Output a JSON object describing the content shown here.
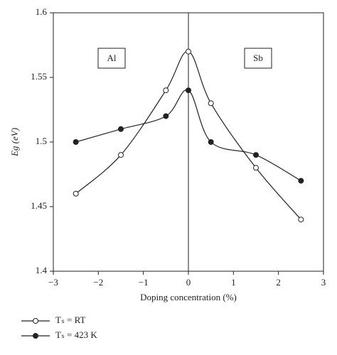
{
  "chart_data": {
    "type": "line",
    "x_label": "Doping concentration (%)",
    "y_label": "Eg (eV)",
    "annotations": [
      "Al",
      "Sb"
    ],
    "x": [
      -2.5,
      -1.5,
      -0.5,
      0,
      0.5,
      1.5,
      2.5
    ],
    "series": [
      {
        "name": "Tₛ = RT",
        "color": "#222222",
        "marker": "open",
        "values": [
          1.46,
          1.49,
          1.54,
          1.57,
          1.53,
          1.48,
          1.44
        ]
      },
      {
        "name": "Tₛ = 423 K",
        "color": "#222222",
        "marker": "filled",
        "values": [
          1.5,
          1.51,
          1.52,
          1.54,
          1.5,
          1.49,
          1.47
        ]
      }
    ],
    "xlim": [
      -3,
      3
    ],
    "xticks": [
      {
        "value": -3,
        "label": "−3"
      },
      {
        "value": -2,
        "label": "−2"
      },
      {
        "value": -1,
        "label": "−1"
      },
      0,
      1,
      2,
      3
    ],
    "ylim": [
      1.4,
      1.6
    ],
    "yticks": [
      1.4,
      1.45,
      1.5,
      1.55,
      1.6
    ]
  }
}
